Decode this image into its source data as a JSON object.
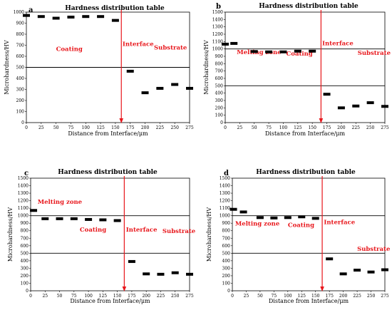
{
  "chart_data": [
    {
      "panel": "a",
      "type": "scatter",
      "title": "Hardness distribution table",
      "xlabel": "Distance from Interface/μm",
      "ylabel": "Microhardness/HV",
      "xlim": [
        0,
        275
      ],
      "ylim": [
        0,
        1000
      ],
      "xticks": [
        0,
        25,
        50,
        75,
        100,
        125,
        150,
        175,
        200,
        225,
        250,
        275
      ],
      "yticks": [
        0,
        100,
        200,
        300,
        400,
        500,
        600,
        700,
        800,
        900,
        1000
      ],
      "reference_lines": [
        500
      ],
      "interface_x": 160,
      "annotations": [
        {
          "text": "Coating",
          "x": 50,
          "y": 650
        },
        {
          "text": "Interface",
          "x": 162,
          "y": 695
        },
        {
          "text": "Substrate",
          "x": 215,
          "y": 660
        }
      ],
      "series": [
        {
          "x": [
            0,
            25,
            50,
            75,
            100,
            125,
            150,
            175,
            200,
            225,
            250,
            275
          ],
          "y": [
            970,
            960,
            945,
            955,
            960,
            960,
            925,
            465,
            270,
            310,
            345,
            310
          ]
        }
      ]
    },
    {
      "panel": "b",
      "type": "scatter",
      "title": "Hardness distribution table",
      "xlabel": "Distance from Interface/μm",
      "ylabel": "Microhardness/HV",
      "xlim": [
        0,
        275
      ],
      "ylim": [
        0,
        1500
      ],
      "xticks": [
        0,
        25,
        50,
        75,
        100,
        125,
        150,
        175,
        200,
        225,
        250,
        275
      ],
      "yticks": [
        0,
        100,
        200,
        300,
        400,
        500,
        600,
        700,
        800,
        900,
        1000,
        1100,
        1200,
        1300,
        1400,
        1500
      ],
      "reference_lines": [
        500,
        1000
      ],
      "interface_x": 165,
      "annotations": [
        {
          "text": "Melting zone",
          "x": 20,
          "y": 930
        },
        {
          "text": "Coating",
          "x": 105,
          "y": 910
        },
        {
          "text": "Interface",
          "x": 167,
          "y": 1050
        },
        {
          "text": "Substrate",
          "x": 228,
          "y": 920
        }
      ],
      "series": [
        {
          "x": [
            0,
            15,
            50,
            75,
            100,
            125,
            150,
            175,
            200,
            225,
            250,
            275
          ],
          "y": [
            1065,
            1075,
            965,
            960,
            960,
            970,
            970,
            385,
            200,
            225,
            270,
            220
          ]
        }
      ]
    },
    {
      "panel": "c",
      "type": "scatter",
      "title": "Hardness distribution table",
      "xlabel": "Distance from Interface/μm",
      "ylabel": "Microhardness/HV",
      "xlim": [
        0,
        275
      ],
      "ylim": [
        0,
        1500
      ],
      "xticks": [
        0,
        25,
        50,
        75,
        100,
        125,
        150,
        175,
        200,
        225,
        250,
        275
      ],
      "yticks": [
        0,
        100,
        200,
        300,
        400,
        500,
        600,
        700,
        800,
        900,
        1000,
        1100,
        1200,
        1300,
        1400,
        1500
      ],
      "reference_lines": [
        500,
        1000
      ],
      "interface_x": 162,
      "annotations": [
        {
          "text": "Melting zone",
          "x": 12,
          "y": 1160
        },
        {
          "text": "Coating",
          "x": 85,
          "y": 790
        },
        {
          "text": "Interface",
          "x": 165,
          "y": 790
        },
        {
          "text": "Substrate",
          "x": 228,
          "y": 770
        }
      ],
      "series": [
        {
          "x": [
            5,
            25,
            50,
            75,
            100,
            125,
            150,
            175,
            200,
            225,
            250,
            275
          ],
          "y": [
            1070,
            960,
            960,
            960,
            950,
            945,
            935,
            390,
            225,
            220,
            240,
            220
          ]
        }
      ]
    },
    {
      "panel": "d",
      "type": "scatter",
      "title": "Hardness distribution table",
      "xlabel": "Distance from Interface/μm",
      "ylabel": "Microhardness/HV",
      "xlim": [
        0,
        275
      ],
      "ylim": [
        0,
        1500
      ],
      "xticks": [
        0,
        25,
        50,
        75,
        100,
        125,
        150,
        175,
        200,
        225,
        250,
        275
      ],
      "yticks": [
        0,
        100,
        200,
        300,
        400,
        500,
        600,
        700,
        800,
        900,
        1000,
        1100,
        1200,
        1300,
        1400,
        1500
      ],
      "reference_lines": [
        500,
        1000
      ],
      "interface_x": 162,
      "annotations": [
        {
          "text": "Melting zone",
          "x": 5,
          "y": 870
        },
        {
          "text": "Coating",
          "x": 100,
          "y": 850
        },
        {
          "text": "Interface",
          "x": 165,
          "y": 890
        },
        {
          "text": "Substrate",
          "x": 225,
          "y": 530
        }
      ],
      "series": [
        {
          "x": [
            2,
            20,
            50,
            75,
            100,
            125,
            150,
            175,
            200,
            225,
            250,
            275
          ],
          "y": [
            1085,
            1050,
            975,
            970,
            975,
            985,
            965,
            425,
            225,
            275,
            250,
            280
          ]
        }
      ]
    }
  ]
}
